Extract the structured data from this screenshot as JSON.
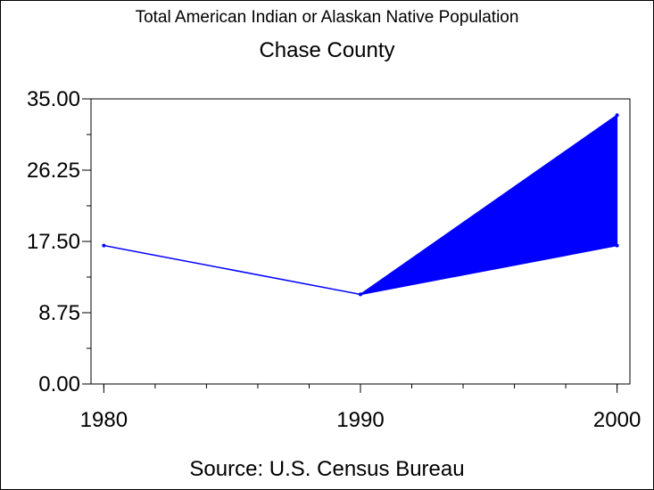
{
  "title": "Total American Indian or Alaskan Native Population",
  "subtitle": "Chase County",
  "footer": "Source: U.S. Census Bureau",
  "chart_data": {
    "type": "line",
    "title": "Total American Indian or Alaskan Native Population",
    "subtitle": "Chase County",
    "xlabel": "",
    "ylabel": "",
    "x": [
      1980,
      1990,
      2000
    ],
    "x_tick_labels": [
      "1980",
      "1990",
      "2000"
    ],
    "y_tick_labels": [
      "0.00",
      "8.75",
      "17.50",
      "26.25",
      "35.00"
    ],
    "y_ticks": [
      0,
      8.75,
      17.5,
      26.25,
      35
    ],
    "ylim": [
      0,
      35
    ],
    "xlim": [
      1979.5,
      2000.5
    ],
    "y_minor_step": 4.375,
    "x_minor_step": 2,
    "series": [
      {
        "values": [
          17,
          11,
          17
        ]
      },
      {
        "values": [
          null,
          11,
          33
        ]
      }
    ],
    "band": {
      "x": [
        1990,
        2000
      ],
      "lower": [
        11,
        17
      ],
      "upper": [
        11,
        33
      ]
    },
    "color": "#0000ff",
    "grid": false,
    "legend": "none"
  }
}
